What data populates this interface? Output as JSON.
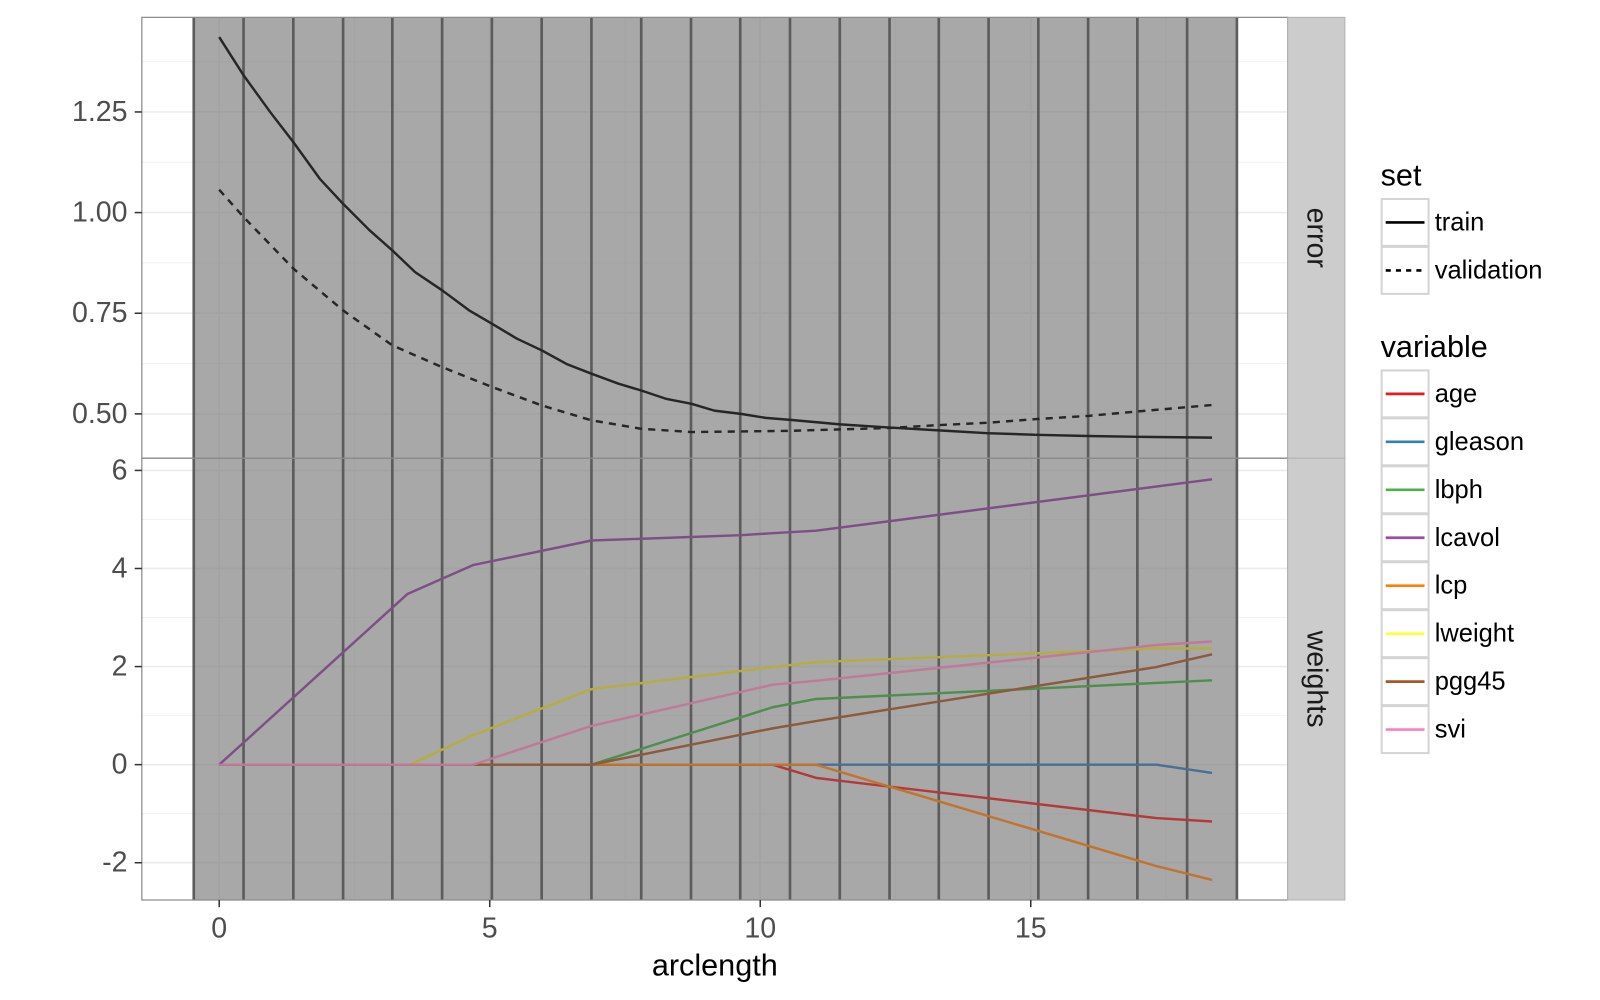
{
  "chart_data": {
    "type": "line",
    "xlabel": "arclength",
    "x_ticks": [
      0,
      5,
      10,
      15
    ],
    "x_tick_labels": [
      "0",
      "5",
      "10",
      "15"
    ],
    "xlim": [
      -1.43,
      19.75
    ],
    "grid": true,
    "legend_position": "right",
    "background_band": {
      "x_range": [
        -0.47,
        18.81
      ],
      "fill": "#a8a8a8"
    },
    "vlines": [
      -0.47,
      0.45,
      1.37,
      2.29,
      3.2,
      4.12,
      5.04,
      5.96,
      6.88,
      7.8,
      8.72,
      9.63,
      10.55,
      11.47,
      12.39,
      13.3,
      14.22,
      15.14,
      16.06,
      16.97,
      17.89,
      18.81
    ],
    "facets": [
      {
        "strip_label": "error",
        "ylim": [
          0.39,
          1.485
        ],
        "y_ticks": [
          0.5,
          0.75,
          1.0,
          1.25
        ],
        "y_tick_labels": [
          "0.50",
          "0.75",
          "1.00",
          "1.25"
        ],
        "series": [
          {
            "name": "train",
            "dash": "solid",
            "color": "#262626",
            "x": [
              0,
              0.45,
              0.94,
              1.37,
              1.86,
              2.29,
              2.78,
              3.2,
              3.62,
              4.12,
              4.62,
              5.04,
              5.5,
              5.96,
              6.42,
              6.88,
              7.38,
              7.8,
              8.27,
              8.73,
              9.15,
              9.64,
              10.1,
              10.56,
              11.48,
              12.4,
              13.3,
              14.2,
              15.1,
              16.06,
              16.98,
              18.35
            ],
            "y": [
              1.436,
              1.341,
              1.25,
              1.175,
              1.084,
              1.022,
              0.956,
              0.906,
              0.852,
              0.807,
              0.757,
              0.724,
              0.687,
              0.658,
              0.624,
              0.6,
              0.575,
              0.558,
              0.537,
              0.525,
              0.508,
              0.5,
              0.49,
              0.485,
              0.474,
              0.466,
              0.459,
              0.452,
              0.448,
              0.445,
              0.443,
              0.441
            ]
          },
          {
            "name": "validation",
            "dash": "dashed",
            "color": "#262626",
            "x": [
              0,
              0.45,
              1.37,
              2.29,
              3.2,
              4.12,
              5.04,
              5.96,
              6.88,
              7.8,
              8.73,
              10.56,
              12.4,
              13.3,
              14.2,
              15.1,
              16.06,
              16.98,
              18.35
            ],
            "y": [
              1.057,
              0.989,
              0.861,
              0.757,
              0.67,
              0.616,
              0.567,
              0.521,
              0.484,
              0.463,
              0.455,
              0.458,
              0.465,
              0.472,
              0.478,
              0.487,
              0.495,
              0.506,
              0.522
            ]
          }
        ]
      },
      {
        "strip_label": "weights",
        "ylim": [
          -2.76,
          6.25
        ],
        "y_ticks": [
          -2,
          0,
          2,
          4,
          6
        ],
        "y_tick_labels": [
          "-2",
          "0",
          "2",
          "4",
          "6"
        ],
        "series": [
          {
            "name": "age",
            "color": "#b33a3a",
            "x": [
              0,
              10.23,
              11.03,
              11.48,
              17.32,
              18.35
            ],
            "y": [
              0,
              0,
              -0.27,
              -0.33,
              -1.09,
              -1.16
            ]
          },
          {
            "name": "gleason",
            "color": "#4a6f94",
            "x": [
              0,
              17.32,
              18.35
            ],
            "y": [
              0,
              0,
              -0.17
            ]
          },
          {
            "name": "lbph",
            "color": "#508e50",
            "x": [
              0,
              6.88,
              10.23,
              11.03,
              18.35
            ],
            "y": [
              0,
              0,
              1.17,
              1.34,
              1.72
            ]
          },
          {
            "name": "lcavol",
            "color": "#7e4f87",
            "x": [
              0,
              3.48,
              4.69,
              6.88,
              9.64,
              10.23,
              11.03,
              18.35
            ],
            "y": [
              0,
              3.48,
              4.07,
              4.57,
              4.68,
              4.72,
              4.77,
              5.82
            ]
          },
          {
            "name": "lcp",
            "color": "#c0742e",
            "x": [
              0,
              11.03,
              17.32,
              18.35
            ],
            "y": [
              0,
              0,
              -2.07,
              -2.35
            ]
          },
          {
            "name": "lweight",
            "color": "#b5ad40",
            "x": [
              0,
              3.52,
              4.69,
              6.88,
              10.23,
              11.03,
              17.32,
              18.35
            ],
            "y": [
              0,
              0,
              0.6,
              1.54,
              1.99,
              2.09,
              2.37,
              2.37
            ]
          },
          {
            "name": "pgg45",
            "color": "#8c5a3c",
            "x": [
              0,
              6.88,
              10.23,
              11.03,
              17.32,
              18.35
            ],
            "y": [
              0,
              0,
              0.74,
              0.89,
              1.99,
              2.25
            ]
          },
          {
            "name": "svi",
            "color": "#bf7a98",
            "x": [
              0,
              4.69,
              6.88,
              10.23,
              11.03,
              17.32,
              18.35
            ],
            "y": [
              0,
              0,
              0.79,
              1.63,
              1.71,
              2.44,
              2.51
            ]
          }
        ]
      }
    ],
    "legends": [
      {
        "title": "set",
        "entries": [
          {
            "label": "train",
            "dash": "solid",
            "color": "#000000"
          },
          {
            "label": "validation",
            "dash": "dashed",
            "color": "#000000"
          }
        ]
      },
      {
        "title": "variable",
        "entries": [
          {
            "label": "age",
            "color": "#E41A1C"
          },
          {
            "label": "gleason",
            "color": "#377EB8"
          },
          {
            "label": "lbph",
            "color": "#4DAF4A"
          },
          {
            "label": "lcavol",
            "color": "#984EA3"
          },
          {
            "label": "lcp",
            "color": "#FF7F00"
          },
          {
            "label": "lweight",
            "color": "#FFFF33"
          },
          {
            "label": "pgg45",
            "color": "#A65628"
          },
          {
            "label": "svi",
            "color": "#F781BF"
          }
        ]
      }
    ]
  }
}
